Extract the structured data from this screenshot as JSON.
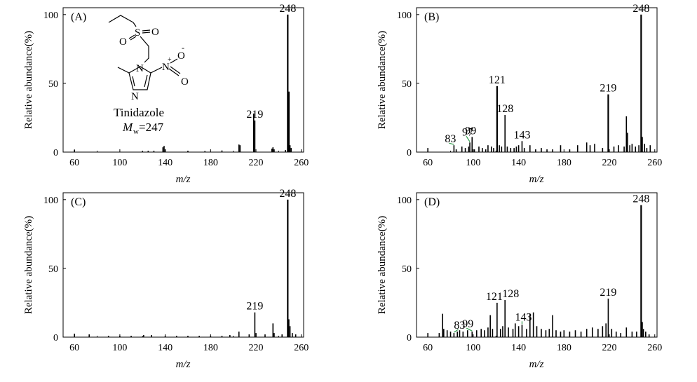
{
  "figure": {
    "ylabel": "Relative abundance(%)",
    "xlabel": "m/z"
  },
  "molecule": {
    "name": "Tinidazole",
    "mw_label": "=247"
  },
  "chart_data": [
    {
      "type": "bar",
      "panel": "(A)",
      "xlim": [
        50,
        262
      ],
      "ylim": [
        0,
        105
      ],
      "xticks": [
        60,
        100,
        140,
        180,
        220,
        260
      ],
      "yticks": [
        0,
        50,
        100
      ],
      "xlabel": "m/z",
      "ylabel": "Relative abundance(%)",
      "peaks": [
        {
          "mz": 60,
          "rel": 1.5
        },
        {
          "mz": 120,
          "rel": 0.8
        },
        {
          "mz": 125,
          "rel": 1
        },
        {
          "mz": 130,
          "rel": 1
        },
        {
          "mz": 138,
          "rel": 3.5
        },
        {
          "mz": 139,
          "rel": 4.5
        },
        {
          "mz": 140,
          "rel": 2
        },
        {
          "mz": 160,
          "rel": 1
        },
        {
          "mz": 175,
          "rel": 0.8
        },
        {
          "mz": 190,
          "rel": 1.2
        },
        {
          "mz": 205,
          "rel": 5.5
        },
        {
          "mz": 206,
          "rel": 5
        },
        {
          "mz": 218,
          "rel": 28
        },
        {
          "mz": 219,
          "rel": 23
        },
        {
          "mz": 234,
          "rel": 2.5
        },
        {
          "mz": 235,
          "rel": 3.5
        },
        {
          "mz": 236,
          "rel": 2
        },
        {
          "mz": 246,
          "rel": 1.5
        },
        {
          "mz": 248,
          "rel": 100
        },
        {
          "mz": 249,
          "rel": 44
        },
        {
          "mz": 250,
          "rel": 5
        },
        {
          "mz": 251,
          "rel": 3
        }
      ],
      "labels": [
        {
          "mz": 219,
          "text": "219"
        },
        {
          "mz": 248,
          "text": "248"
        }
      ]
    },
    {
      "type": "bar",
      "panel": "(B)",
      "xlim": [
        50,
        262
      ],
      "ylim": [
        0,
        105
      ],
      "xticks": [
        60,
        100,
        140,
        180,
        220,
        260
      ],
      "yticks": [
        0,
        50,
        100
      ],
      "xlabel": "m/z",
      "ylabel": "Relative abundance(%)",
      "peaks": [
        {
          "mz": 60,
          "rel": 3
        },
        {
          "mz": 83,
          "rel": 5
        },
        {
          "mz": 85,
          "rel": 2
        },
        {
          "mz": 90,
          "rel": 4
        },
        {
          "mz": 93,
          "rel": 3
        },
        {
          "mz": 96,
          "rel": 4
        },
        {
          "mz": 97,
          "rel": 7
        },
        {
          "mz": 99,
          "rel": 11
        },
        {
          "mz": 101,
          "rel": 2
        },
        {
          "mz": 105,
          "rel": 4
        },
        {
          "mz": 108,
          "rel": 3
        },
        {
          "mz": 111,
          "rel": 2
        },
        {
          "mz": 113,
          "rel": 5
        },
        {
          "mz": 116,
          "rel": 4
        },
        {
          "mz": 118,
          "rel": 3
        },
        {
          "mz": 121,
          "rel": 48
        },
        {
          "mz": 123,
          "rel": 5
        },
        {
          "mz": 125,
          "rel": 4
        },
        {
          "mz": 128,
          "rel": 27
        },
        {
          "mz": 130,
          "rel": 4
        },
        {
          "mz": 133,
          "rel": 3
        },
        {
          "mz": 136,
          "rel": 3
        },
        {
          "mz": 138,
          "rel": 4
        },
        {
          "mz": 140,
          "rel": 5
        },
        {
          "mz": 143,
          "rel": 8
        },
        {
          "mz": 145,
          "rel": 3
        },
        {
          "mz": 150,
          "rel": 5
        },
        {
          "mz": 155,
          "rel": 2
        },
        {
          "mz": 160,
          "rel": 3
        },
        {
          "mz": 165,
          "rel": 2
        },
        {
          "mz": 170,
          "rel": 2
        },
        {
          "mz": 177,
          "rel": 5
        },
        {
          "mz": 185,
          "rel": 2
        },
        {
          "mz": 192,
          "rel": 5
        },
        {
          "mz": 200,
          "rel": 7
        },
        {
          "mz": 203,
          "rel": 5
        },
        {
          "mz": 207,
          "rel": 6
        },
        {
          "mz": 214,
          "rel": 3
        },
        {
          "mz": 219,
          "rel": 42
        },
        {
          "mz": 224,
          "rel": 4
        },
        {
          "mz": 228,
          "rel": 5
        },
        {
          "mz": 233,
          "rel": 4
        },
        {
          "mz": 235,
          "rel": 26
        },
        {
          "mz": 236,
          "rel": 14
        },
        {
          "mz": 238,
          "rel": 5
        },
        {
          "mz": 240,
          "rel": 6
        },
        {
          "mz": 243,
          "rel": 4
        },
        {
          "mz": 246,
          "rel": 5
        },
        {
          "mz": 248,
          "rel": 100
        },
        {
          "mz": 249,
          "rel": 11
        },
        {
          "mz": 251,
          "rel": 6
        },
        {
          "mz": 253,
          "rel": 3
        },
        {
          "mz": 256,
          "rel": 5
        }
      ],
      "labels": [
        {
          "mz": 83,
          "text": "83"
        },
        {
          "mz": 97,
          "text": "97"
        },
        {
          "mz": 99,
          "text": "99"
        },
        {
          "mz": 121,
          "text": "121"
        },
        {
          "mz": 128,
          "text": "128"
        },
        {
          "mz": 143,
          "text": "143"
        },
        {
          "mz": 219,
          "text": "219"
        },
        {
          "mz": 248,
          "text": "248"
        }
      ]
    },
    {
      "type": "bar",
      "panel": "(C)",
      "xlim": [
        50,
        262
      ],
      "ylim": [
        0,
        105
      ],
      "xticks": [
        60,
        100,
        140,
        180,
        220,
        260
      ],
      "yticks": [
        0,
        50,
        100
      ],
      "xlabel": "m/z",
      "ylabel": "Relative abundance(%)",
      "peaks": [
        {
          "mz": 60,
          "rel": 2.5
        },
        {
          "mz": 73,
          "rel": 2
        },
        {
          "mz": 90,
          "rel": 1
        },
        {
          "mz": 100,
          "rel": 1
        },
        {
          "mz": 110,
          "rel": 1
        },
        {
          "mz": 121,
          "rel": 1.5
        },
        {
          "mz": 128,
          "rel": 1.5
        },
        {
          "mz": 140,
          "rel": 1
        },
        {
          "mz": 150,
          "rel": 1
        },
        {
          "mz": 160,
          "rel": 1
        },
        {
          "mz": 170,
          "rel": 1
        },
        {
          "mz": 180,
          "rel": 1
        },
        {
          "mz": 190,
          "rel": 1
        },
        {
          "mz": 197,
          "rel": 1.5
        },
        {
          "mz": 205,
          "rel": 4
        },
        {
          "mz": 214,
          "rel": 2
        },
        {
          "mz": 219,
          "rel": 18
        },
        {
          "mz": 220,
          "rel": 3
        },
        {
          "mz": 228,
          "rel": 2
        },
        {
          "mz": 235,
          "rel": 10
        },
        {
          "mz": 236,
          "rel": 3
        },
        {
          "mz": 243,
          "rel": 2
        },
        {
          "mz": 248,
          "rel": 100
        },
        {
          "mz": 249,
          "rel": 13
        },
        {
          "mz": 250,
          "rel": 8
        },
        {
          "mz": 252,
          "rel": 3
        },
        {
          "mz": 255,
          "rel": 2
        }
      ],
      "labels": [
        {
          "mz": 219,
          "text": "219"
        },
        {
          "mz": 248,
          "text": "248"
        }
      ]
    },
    {
      "type": "bar",
      "panel": "(D)",
      "xlim": [
        50,
        262
      ],
      "ylim": [
        0,
        105
      ],
      "xticks": [
        60,
        100,
        140,
        180,
        220,
        260
      ],
      "yticks": [
        0,
        50,
        100
      ],
      "xlabel": "m/z",
      "ylabel": "Relative abundance(%)",
      "peaks": [
        {
          "mz": 60,
          "rel": 3
        },
        {
          "mz": 70,
          "rel": 3
        },
        {
          "mz": 73,
          "rel": 17
        },
        {
          "mz": 74,
          "rel": 6
        },
        {
          "mz": 77,
          "rel": 5
        },
        {
          "mz": 80,
          "rel": 4
        },
        {
          "mz": 83,
          "rel": 3
        },
        {
          "mz": 86,
          "rel": 4
        },
        {
          "mz": 88,
          "rel": 5
        },
        {
          "mz": 91,
          "rel": 4
        },
        {
          "mz": 95,
          "rel": 5
        },
        {
          "mz": 99,
          "rel": 4
        },
        {
          "mz": 103,
          "rel": 5
        },
        {
          "mz": 107,
          "rel": 6
        },
        {
          "mz": 110,
          "rel": 5
        },
        {
          "mz": 113,
          "rel": 7
        },
        {
          "mz": 115,
          "rel": 16
        },
        {
          "mz": 117,
          "rel": 6
        },
        {
          "mz": 121,
          "rel": 25
        },
        {
          "mz": 124,
          "rel": 6
        },
        {
          "mz": 126,
          "rel": 8
        },
        {
          "mz": 128,
          "rel": 27
        },
        {
          "mz": 131,
          "rel": 7
        },
        {
          "mz": 135,
          "rel": 6
        },
        {
          "mz": 137,
          "rel": 10
        },
        {
          "mz": 140,
          "rel": 8
        },
        {
          "mz": 143,
          "rel": 9
        },
        {
          "mz": 147,
          "rel": 6
        },
        {
          "mz": 150,
          "rel": 17
        },
        {
          "mz": 153,
          "rel": 18
        },
        {
          "mz": 156,
          "rel": 8
        },
        {
          "mz": 160,
          "rel": 6
        },
        {
          "mz": 164,
          "rel": 5
        },
        {
          "mz": 167,
          "rel": 6
        },
        {
          "mz": 170,
          "rel": 16
        },
        {
          "mz": 173,
          "rel": 5
        },
        {
          "mz": 177,
          "rel": 4
        },
        {
          "mz": 180,
          "rel": 5
        },
        {
          "mz": 185,
          "rel": 4
        },
        {
          "mz": 190,
          "rel": 5
        },
        {
          "mz": 195,
          "rel": 4
        },
        {
          "mz": 200,
          "rel": 6
        },
        {
          "mz": 205,
          "rel": 7
        },
        {
          "mz": 210,
          "rel": 6
        },
        {
          "mz": 214,
          "rel": 8
        },
        {
          "mz": 217,
          "rel": 10
        },
        {
          "mz": 219,
          "rel": 28
        },
        {
          "mz": 222,
          "rel": 6
        },
        {
          "mz": 226,
          "rel": 4
        },
        {
          "mz": 230,
          "rel": 3
        },
        {
          "mz": 235,
          "rel": 7
        },
        {
          "mz": 240,
          "rel": 4
        },
        {
          "mz": 244,
          "rel": 4
        },
        {
          "mz": 248,
          "rel": 96
        },
        {
          "mz": 249,
          "rel": 11
        },
        {
          "mz": 250,
          "rel": 6
        },
        {
          "mz": 252,
          "rel": 4
        },
        {
          "mz": 255,
          "rel": 2
        }
      ],
      "labels": [
        {
          "mz": 83,
          "text": "83"
        },
        {
          "mz": 99,
          "text": "99"
        },
        {
          "mz": 121,
          "text": "121"
        },
        {
          "mz": 128,
          "text": "128"
        },
        {
          "mz": 143,
          "text": "143"
        },
        {
          "mz": 219,
          "text": "219"
        },
        {
          "mz": 248,
          "text": "248"
        }
      ]
    }
  ]
}
